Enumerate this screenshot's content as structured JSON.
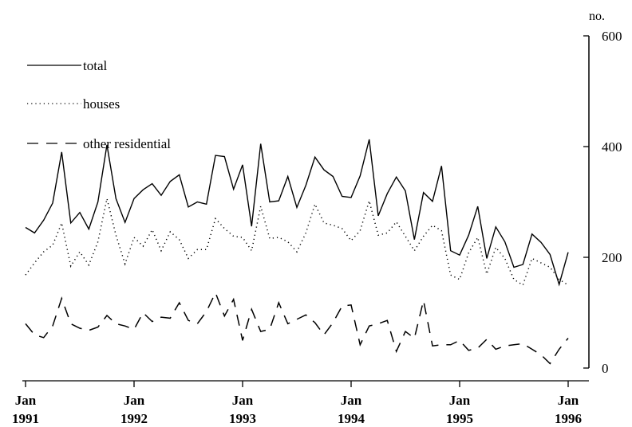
{
  "chart_data": {
    "type": "line",
    "ylabel": "no.",
    "ylim": [
      0,
      600
    ],
    "yticks": [
      0,
      200,
      400,
      600
    ],
    "y_axis_side": "right",
    "x_tick_labels": [
      {
        "x": 1991.0,
        "month": "Jan",
        "year": "1991"
      },
      {
        "x": 1992.0,
        "month": "Jan",
        "year": "1992"
      },
      {
        "x": 1993.0,
        "month": "Jan",
        "year": "1993"
      },
      {
        "x": 1994.0,
        "month": "Jan",
        "year": "1994"
      },
      {
        "x": 1995.0,
        "month": "Jan",
        "year": "1995"
      },
      {
        "x": 1996.0,
        "month": "Jan",
        "year": "1996"
      }
    ],
    "xlim": [
      1991.0,
      1996.0
    ],
    "start": "1991-01",
    "frequency": "monthly",
    "legend_position": "top-left",
    "grid": false,
    "series": [
      {
        "name": "total",
        "style": "solid",
        "values": [
          254,
          244,
          267,
          298,
          390,
          262,
          281,
          251,
          300,
          403,
          306,
          263,
          306,
          322,
          333,
          312,
          337,
          349,
          291,
          300,
          296,
          384,
          382,
          323,
          367,
          256,
          405,
          300,
          302,
          346,
          290,
          330,
          381,
          358,
          346,
          310,
          308,
          347,
          413,
          275,
          315,
          345,
          320,
          232,
          317,
          301,
          365,
          212,
          204,
          240,
          292,
          198,
          255,
          228,
          182,
          187,
          242,
          227,
          205,
          151,
          209
        ],
        "color": "#000000"
      },
      {
        "name": "houses",
        "style": "dotted",
        "values": [
          168,
          190,
          210,
          222,
          262,
          184,
          210,
          186,
          228,
          306,
          240,
          188,
          236,
          220,
          250,
          212,
          246,
          232,
          198,
          214,
          214,
          270,
          252,
          238,
          236,
          212,
          292,
          234,
          236,
          228,
          210,
          244,
          296,
          262,
          258,
          252,
          230,
          248,
          302,
          240,
          244,
          264,
          238,
          212,
          238,
          258,
          248,
          168,
          160,
          208,
          236,
          170,
          218,
          198,
          160,
          150,
          198,
          190,
          182,
          160,
          150
        ],
        "color": "#000000"
      },
      {
        "name": "other residential",
        "style": "dashed",
        "values": [
          80,
          60,
          55,
          76,
          126,
          80,
          72,
          68,
          74,
          95,
          80,
          76,
          70,
          100,
          84,
          92,
          90,
          118,
          86,
          80,
          102,
          136,
          94,
          124,
          50,
          106,
          66,
          70,
          118,
          80,
          88,
          96,
          82,
          60,
          82,
          112,
          114,
          42,
          76,
          80,
          86,
          30,
          66,
          54,
          122,
          40,
          42,
          42,
          50,
          32,
          36,
          52,
          34,
          40,
          42,
          44,
          34,
          24,
          8,
          34,
          54
        ],
        "color": "#000000"
      }
    ]
  }
}
